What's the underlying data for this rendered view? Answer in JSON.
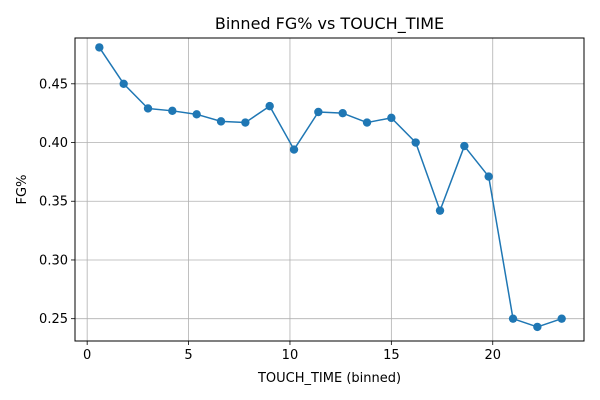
{
  "chart_data": {
    "type": "line",
    "title": "Binned FG% vs TOUCH_TIME",
    "xlabel": "TOUCH_TIME (binned)",
    "ylabel": "FG%",
    "xlim": [
      -0.6,
      24.5
    ],
    "ylim": [
      0.231,
      0.489
    ],
    "xticks": [
      0,
      5,
      10,
      15,
      20
    ],
    "xtick_labels": [
      "0",
      "5",
      "10",
      "15",
      "20"
    ],
    "yticks": [
      0.25,
      0.3,
      0.35,
      0.4,
      0.45
    ],
    "ytick_labels": [
      "0.25",
      "0.30",
      "0.35",
      "0.40",
      "0.45"
    ],
    "grid": true,
    "line_color": "#1f77b4",
    "series": [
      {
        "x": [
          0.6,
          1.8,
          3.0,
          4.2,
          5.4,
          6.6,
          7.8,
          9.0,
          10.2,
          11.4,
          12.6,
          13.8,
          15.0,
          16.2,
          17.4,
          18.6,
          19.8,
          21.0,
          22.2,
          23.4
        ],
        "y": [
          0.481,
          0.45,
          0.429,
          0.427,
          0.424,
          0.418,
          0.417,
          0.431,
          0.394,
          0.426,
          0.425,
          0.417,
          0.421,
          0.4,
          0.342,
          0.397,
          0.371,
          0.25,
          0.243,
          0.25
        ]
      }
    ]
  }
}
